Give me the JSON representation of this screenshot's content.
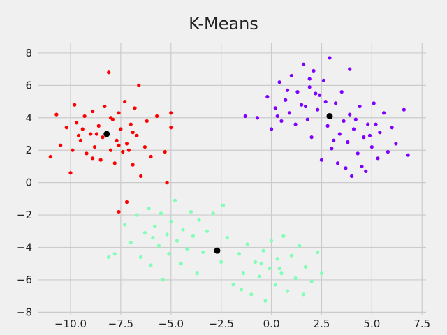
{
  "chart_data": {
    "type": "scatter",
    "title": "K-Means",
    "xlabel": "",
    "ylabel": "",
    "xlim": [
      -11.6,
      7.7
    ],
    "ylim": [
      -8.2,
      8.6
    ],
    "x_ticks": [
      -10.0,
      -7.5,
      -5.0,
      -2.5,
      0.0,
      2.5,
      5.0,
      7.5
    ],
    "x_tick_labels": [
      "−10.0",
      "−7.5",
      "−5.0",
      "−2.5",
      "0.0",
      "2.5",
      "5.0",
      "7.5"
    ],
    "y_ticks": [
      -8,
      -6,
      -4,
      -2,
      0,
      2,
      4,
      6,
      8
    ],
    "y_tick_labels": [
      "−8",
      "−6",
      "−4",
      "−2",
      "0",
      "2",
      "4",
      "6",
      "8"
    ],
    "grid": true,
    "background": "#f0f0f0",
    "grid_color": "#cbcbcb",
    "series": [
      {
        "color": "#ff0000",
        "points": [
          [
            -11.0,
            1.6
          ],
          [
            -10.7,
            4.2
          ],
          [
            -10.5,
            2.3
          ],
          [
            -10.2,
            3.4
          ],
          [
            -10.0,
            0.6
          ],
          [
            -9.9,
            2.0
          ],
          [
            -9.7,
            3.7
          ],
          [
            -9.5,
            2.6
          ],
          [
            -9.3,
            4.1
          ],
          [
            -9.2,
            1.8
          ],
          [
            -9.0,
            3.0
          ],
          [
            -8.9,
            4.4
          ],
          [
            -8.8,
            2.2
          ],
          [
            -8.6,
            3.5
          ],
          [
            -8.5,
            1.4
          ],
          [
            -8.4,
            2.8
          ],
          [
            -8.3,
            4.7
          ],
          [
            -8.2,
            3.1
          ],
          [
            -8.1,
            6.8
          ],
          [
            -8.0,
            2.0
          ],
          [
            -7.9,
            3.9
          ],
          [
            -7.8,
            1.2
          ],
          [
            -7.7,
            2.6
          ],
          [
            -7.6,
            4.3
          ],
          [
            -7.5,
            3.3
          ],
          [
            -7.4,
            1.9
          ],
          [
            -7.3,
            5.0
          ],
          [
            -7.2,
            2.4
          ],
          [
            -7.0,
            3.6
          ],
          [
            -6.9,
            1.1
          ],
          [
            -6.8,
            4.6
          ],
          [
            -6.7,
            2.9
          ],
          [
            -6.6,
            6.0
          ],
          [
            -6.5,
            0.4
          ],
          [
            -6.3,
            2.2
          ],
          [
            -6.2,
            3.8
          ],
          [
            -6.0,
            1.6
          ],
          [
            -5.7,
            4.1
          ],
          [
            -5.3,
            1.9
          ],
          [
            -5.0,
            3.4
          ],
          [
            -8.7,
            3.0
          ],
          [
            -9.4,
            3.3
          ],
          [
            -7.1,
            2.0
          ],
          [
            -8.0,
            4.0
          ],
          [
            -9.6,
            2.9
          ],
          [
            -7.6,
            2.3
          ],
          [
            -8.9,
            1.5
          ],
          [
            -6.9,
            3.1
          ],
          [
            -9.8,
            4.8
          ],
          [
            -5.2,
            0.0
          ],
          [
            -7.2,
            -1.2
          ],
          [
            -7.6,
            -1.8
          ],
          [
            -5.0,
            4.3
          ]
        ]
      },
      {
        "color": "#80ffb4",
        "points": [
          [
            -7.8,
            -4.4
          ],
          [
            -7.3,
            -2.6
          ],
          [
            -7.0,
            -3.7
          ],
          [
            -6.7,
            -2.0
          ],
          [
            -6.5,
            -4.6
          ],
          [
            -6.3,
            -3.1
          ],
          [
            -6.1,
            -1.6
          ],
          [
            -6.0,
            -5.1
          ],
          [
            -5.8,
            -2.7
          ],
          [
            -5.6,
            -3.9
          ],
          [
            -5.5,
            -1.9
          ],
          [
            -5.4,
            -6.0
          ],
          [
            -5.2,
            -3.2
          ],
          [
            -5.1,
            -4.4
          ],
          [
            -5.0,
            -2.4
          ],
          [
            -4.8,
            -1.1
          ],
          [
            -4.7,
            -3.6
          ],
          [
            -4.5,
            -5.0
          ],
          [
            -4.4,
            -2.9
          ],
          [
            -4.2,
            -4.1
          ],
          [
            -4.0,
            -1.8
          ],
          [
            -3.9,
            -3.3
          ],
          [
            -3.7,
            -5.6
          ],
          [
            -3.6,
            -2.3
          ],
          [
            -3.4,
            -4.3
          ],
          [
            -3.2,
            -3.0
          ],
          [
            -2.9,
            -1.9
          ],
          [
            -2.5,
            -4.9
          ],
          [
            -2.2,
            -3.4
          ],
          [
            -1.9,
            -6.3
          ],
          [
            -1.6,
            -4.4
          ],
          [
            -1.4,
            -5.6
          ],
          [
            -1.2,
            -3.8
          ],
          [
            -1.0,
            -6.9
          ],
          [
            -0.8,
            -4.9
          ],
          [
            -0.6,
            -5.8
          ],
          [
            -0.4,
            -4.2
          ],
          [
            -0.3,
            -7.3
          ],
          [
            -0.1,
            -5.3
          ],
          [
            0.0,
            -3.6
          ],
          [
            0.2,
            -6.3
          ],
          [
            0.3,
            -4.7
          ],
          [
            0.5,
            -5.6
          ],
          [
            0.6,
            -3.3
          ],
          [
            0.8,
            -6.7
          ],
          [
            1.0,
            -4.5
          ],
          [
            1.2,
            -5.9
          ],
          [
            1.4,
            -3.9
          ],
          [
            1.7,
            -5.2
          ],
          [
            2.0,
            -6.1
          ],
          [
            2.3,
            -4.3
          ],
          [
            2.5,
            -5.6
          ],
          [
            -8.1,
            -4.6
          ],
          [
            -2.4,
            -1.4
          ],
          [
            -5.9,
            -3.4
          ],
          [
            -0.5,
            -5.0
          ],
          [
            0.4,
            -5.3
          ],
          [
            -1.5,
            -6.6
          ],
          [
            1.6,
            -6.9
          ]
        ]
      },
      {
        "color": "#8000ff",
        "points": [
          [
            -0.7,
            4.0
          ],
          [
            -0.2,
            5.3
          ],
          [
            0.0,
            3.3
          ],
          [
            0.2,
            4.6
          ],
          [
            0.4,
            6.2
          ],
          [
            0.5,
            3.8
          ],
          [
            0.7,
            5.1
          ],
          [
            0.9,
            4.3
          ],
          [
            1.0,
            6.6
          ],
          [
            1.2,
            3.6
          ],
          [
            1.3,
            5.6
          ],
          [
            1.5,
            4.8
          ],
          [
            1.6,
            7.3
          ],
          [
            1.8,
            3.9
          ],
          [
            1.9,
            5.9
          ],
          [
            2.0,
            2.8
          ],
          [
            2.1,
            6.9
          ],
          [
            2.3,
            4.5
          ],
          [
            2.4,
            5.4
          ],
          [
            2.5,
            1.4
          ],
          [
            2.6,
            6.3
          ],
          [
            2.8,
            3.5
          ],
          [
            2.9,
            7.7
          ],
          [
            3.0,
            2.1
          ],
          [
            3.2,
            4.9
          ],
          [
            3.3,
            1.2
          ],
          [
            3.4,
            3.0
          ],
          [
            3.5,
            5.6
          ],
          [
            3.7,
            0.9
          ],
          [
            3.8,
            2.5
          ],
          [
            3.9,
            4.2
          ],
          [
            4.0,
            0.4
          ],
          [
            4.1,
            3.3
          ],
          [
            4.3,
            1.8
          ],
          [
            4.4,
            4.7
          ],
          [
            4.6,
            2.8
          ],
          [
            4.7,
            0.7
          ],
          [
            4.8,
            3.6
          ],
          [
            5.0,
            2.2
          ],
          [
            5.1,
            4.9
          ],
          [
            5.3,
            1.5
          ],
          [
            5.4,
            3.1
          ],
          [
            5.6,
            4.3
          ],
          [
            5.8,
            1.9
          ],
          [
            6.0,
            3.4
          ],
          [
            6.2,
            2.4
          ],
          [
            6.6,
            4.5
          ],
          [
            6.8,
            1.7
          ],
          [
            2.7,
            5.0
          ],
          [
            3.6,
            3.8
          ],
          [
            4.9,
            2.9
          ],
          [
            1.7,
            4.7
          ],
          [
            0.8,
            5.7
          ],
          [
            2.2,
            5.5
          ],
          [
            3.1,
            2.6
          ],
          [
            4.2,
            3.9
          ],
          [
            5.2,
            3.6
          ],
          [
            1.9,
            6.4
          ],
          [
            0.3,
            4.1
          ],
          [
            -1.3,
            4.1
          ],
          [
            4.5,
            1.0
          ],
          [
            3.9,
            7.0
          ]
        ]
      },
      {
        "color": "#000000",
        "name": "",
        "points": [
          [
            -8.2,
            3.0
          ],
          [
            -2.7,
            -4.2
          ],
          [
            2.9,
            4.1
          ]
        ]
      }
    ]
  }
}
